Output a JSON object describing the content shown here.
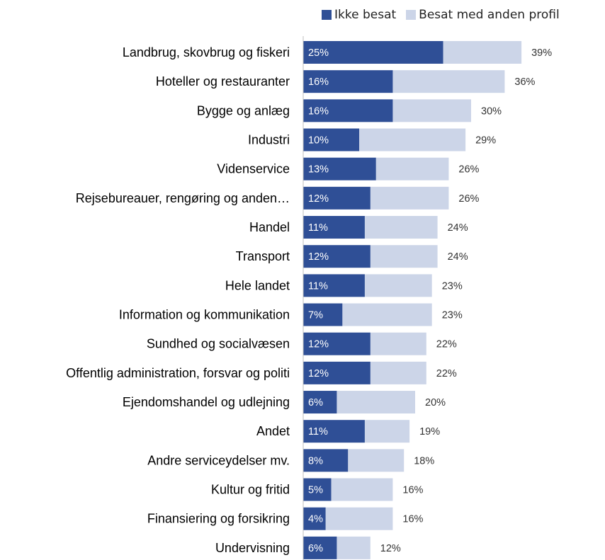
{
  "chart_data": {
    "type": "bar",
    "stacked": true,
    "orientation": "horizontal",
    "categories": [
      "Landbrug, skovbrug og fiskeri",
      "Hoteller og restauranter",
      "Bygge og anlæg",
      "Industri",
      "Videnservice",
      "Rejsebureauer, rengøring og anden…",
      "Handel",
      "Transport",
      "Hele landet",
      "Information og kommunikation",
      "Sundhed og socialvæsen",
      "Offentlig administration, forsvar og politi",
      "Ejendomshandel og udlejning",
      "Andet",
      "Andre serviceydelser mv.",
      "Kultur og fritid",
      "Finansiering og forsikring",
      "Undervisning"
    ],
    "series": [
      {
        "name": "Ikke besat",
        "color": "#2f4f96",
        "values": [
          25,
          16,
          16,
          10,
          13,
          12,
          11,
          12,
          11,
          7,
          12,
          12,
          6,
          11,
          8,
          5,
          4,
          6
        ],
        "labels": [
          "25%",
          "16%",
          "16%",
          "10%",
          "13%",
          "12%",
          "11%",
          "12%",
          "11%",
          "7%",
          "12%",
          "12%",
          "6%",
          "11%",
          "8%",
          "5%",
          "4%",
          "6%"
        ]
      },
      {
        "name": "Besat med anden profil",
        "color": "#ccd5e8",
        "values": [
          14,
          20,
          14,
          19,
          13,
          14,
          13,
          12,
          12,
          16,
          10,
          10,
          14,
          8,
          10,
          11,
          12,
          6
        ]
      }
    ],
    "totals": [
      39,
      36,
      30,
      29,
      26,
      26,
      24,
      24,
      23,
      23,
      22,
      22,
      20,
      19,
      18,
      16,
      16,
      12
    ],
    "total_labels": [
      "39%",
      "36%",
      "30%",
      "29%",
      "26%",
      "26%",
      "24%",
      "24%",
      "23%",
      "23%",
      "22%",
      "22%",
      "20%",
      "19%",
      "18%",
      "16%",
      "16%",
      "12%"
    ],
    "xlim": [
      0,
      39
    ],
    "legend_position": "top",
    "grid": false
  }
}
